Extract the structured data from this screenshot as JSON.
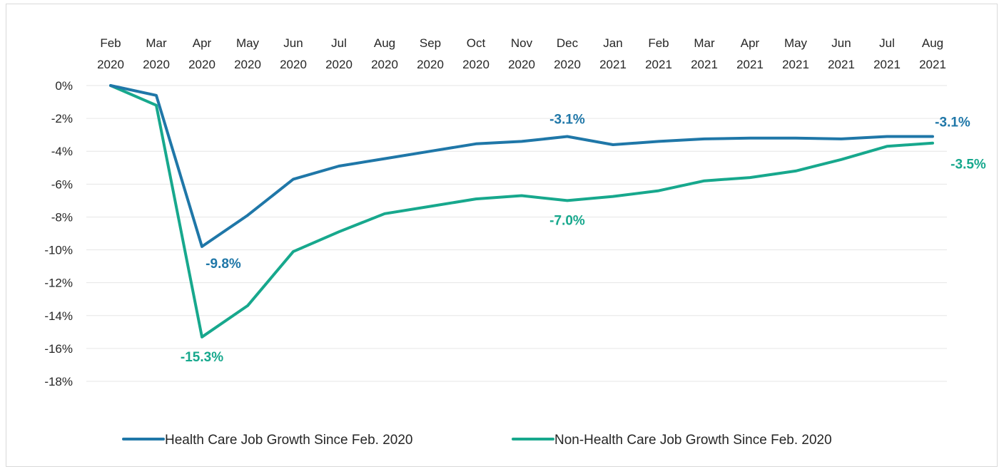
{
  "chart_data": {
    "type": "line",
    "title": "",
    "xlabel": "",
    "ylabel": "",
    "ylim": [
      -18,
      0
    ],
    "y_ticks": [
      0,
      -2,
      -4,
      -6,
      -8,
      -10,
      -12,
      -14,
      -16,
      -18
    ],
    "y_tick_labels": [
      "0%",
      "-2%",
      "-4%",
      "-6%",
      "-8%",
      "-10%",
      "-12%",
      "-14%",
      "-16%",
      "-18%"
    ],
    "x_axis_position": "top",
    "grid": true,
    "legend_position": "bottom",
    "categories": [
      [
        "Feb",
        "2020"
      ],
      [
        "Mar",
        "2020"
      ],
      [
        "Apr",
        "2020"
      ],
      [
        "May",
        "2020"
      ],
      [
        "Jun",
        "2020"
      ],
      [
        "Jul",
        "2020"
      ],
      [
        "Aug",
        "2020"
      ],
      [
        "Sep",
        "2020"
      ],
      [
        "Oct",
        "2020"
      ],
      [
        "Nov",
        "2020"
      ],
      [
        "Dec",
        "2020"
      ],
      [
        "Jan",
        "2021"
      ],
      [
        "Feb",
        "2021"
      ],
      [
        "Mar",
        "2021"
      ],
      [
        "Apr",
        "2021"
      ],
      [
        "May",
        "2021"
      ],
      [
        "Jun",
        "2021"
      ],
      [
        "Jul",
        "2021"
      ],
      [
        "Aug",
        "2021"
      ]
    ],
    "series": [
      {
        "name": "Health Care Job Growth Since Feb. 2020",
        "color": "#1f77a8",
        "values": [
          0,
          -0.6,
          -9.8,
          -7.9,
          -5.7,
          -4.9,
          -4.45,
          -4.0,
          -3.55,
          -3.4,
          -3.1,
          -3.6,
          -3.4,
          -3.25,
          -3.2,
          -3.2,
          -3.25,
          -3.1,
          -3.1
        ],
        "labels": [
          {
            "index": 2,
            "text": "-9.8%",
            "position": "below-right"
          },
          {
            "index": 10,
            "text": "-3.1%",
            "position": "above"
          },
          {
            "index": 18,
            "text": "-3.1%",
            "position": "above-right"
          }
        ]
      },
      {
        "name": "Non-Health Care Job Growth Since Feb. 2020",
        "color": "#17a88d",
        "values": [
          0,
          -1.2,
          -15.3,
          -13.4,
          -10.1,
          -8.9,
          -7.8,
          -7.35,
          -6.9,
          -6.7,
          -7.0,
          -6.75,
          -6.4,
          -5.8,
          -5.6,
          -5.2,
          -4.5,
          -3.7,
          -3.5
        ],
        "labels": [
          {
            "index": 2,
            "text": "-15.3%",
            "position": "below"
          },
          {
            "index": 10,
            "text": "-7.0%",
            "position": "below"
          },
          {
            "index": 18,
            "text": "-3.5%",
            "position": "below-right"
          }
        ]
      }
    ]
  }
}
